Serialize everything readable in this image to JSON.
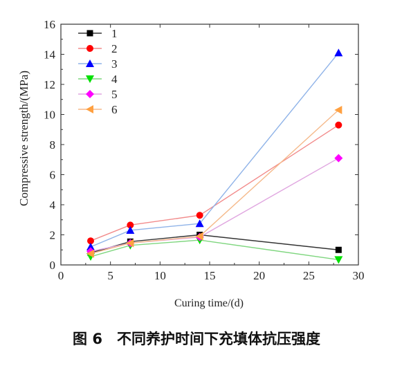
{
  "caption": "图 6　不同养护时间下充填体抗压强度",
  "chart_data": {
    "type": "line",
    "xlabel": "Curing time/(d)",
    "ylabel": "Compressive strength/(MPa)",
    "xlim": [
      0,
      30
    ],
    "ylim": [
      0,
      16
    ],
    "xticks": [
      "0",
      "5",
      "10",
      "15",
      "20",
      "25",
      "30"
    ],
    "yticks": [
      "0",
      "2",
      "4",
      "6",
      "8",
      "10",
      "12",
      "14",
      "16"
    ],
    "legend_position": "top-left",
    "grid": false,
    "x": [
      3,
      7,
      14,
      28
    ],
    "series": [
      {
        "name": "1",
        "values": [
          0.8,
          1.55,
          2.0,
          1.0
        ],
        "color": "#000000",
        "line_color": "#333333",
        "marker": "square"
      },
      {
        "name": "2",
        "values": [
          1.6,
          2.65,
          3.3,
          9.3
        ],
        "color": "#ff0000",
        "line_color": "#f28b8b",
        "marker": "circle"
      },
      {
        "name": "3",
        "values": [
          1.2,
          2.3,
          2.75,
          14.1
        ],
        "color": "#0000ff",
        "line_color": "#8fb3e8",
        "marker": "triangle-up"
      },
      {
        "name": "4",
        "values": [
          0.55,
          1.3,
          1.65,
          0.35
        ],
        "color": "#00e000",
        "line_color": "#7fd67f",
        "marker": "triangle-down"
      },
      {
        "name": "5",
        "values": [
          0.9,
          1.45,
          1.85,
          7.1
        ],
        "color": "#ff00ff",
        "line_color": "#e0a6e0",
        "marker": "diamond"
      },
      {
        "name": "6",
        "values": [
          0.75,
          1.45,
          1.9,
          10.3
        ],
        "color": "#ffa040",
        "line_color": "#f5b98a",
        "marker": "triangle-left"
      }
    ]
  }
}
